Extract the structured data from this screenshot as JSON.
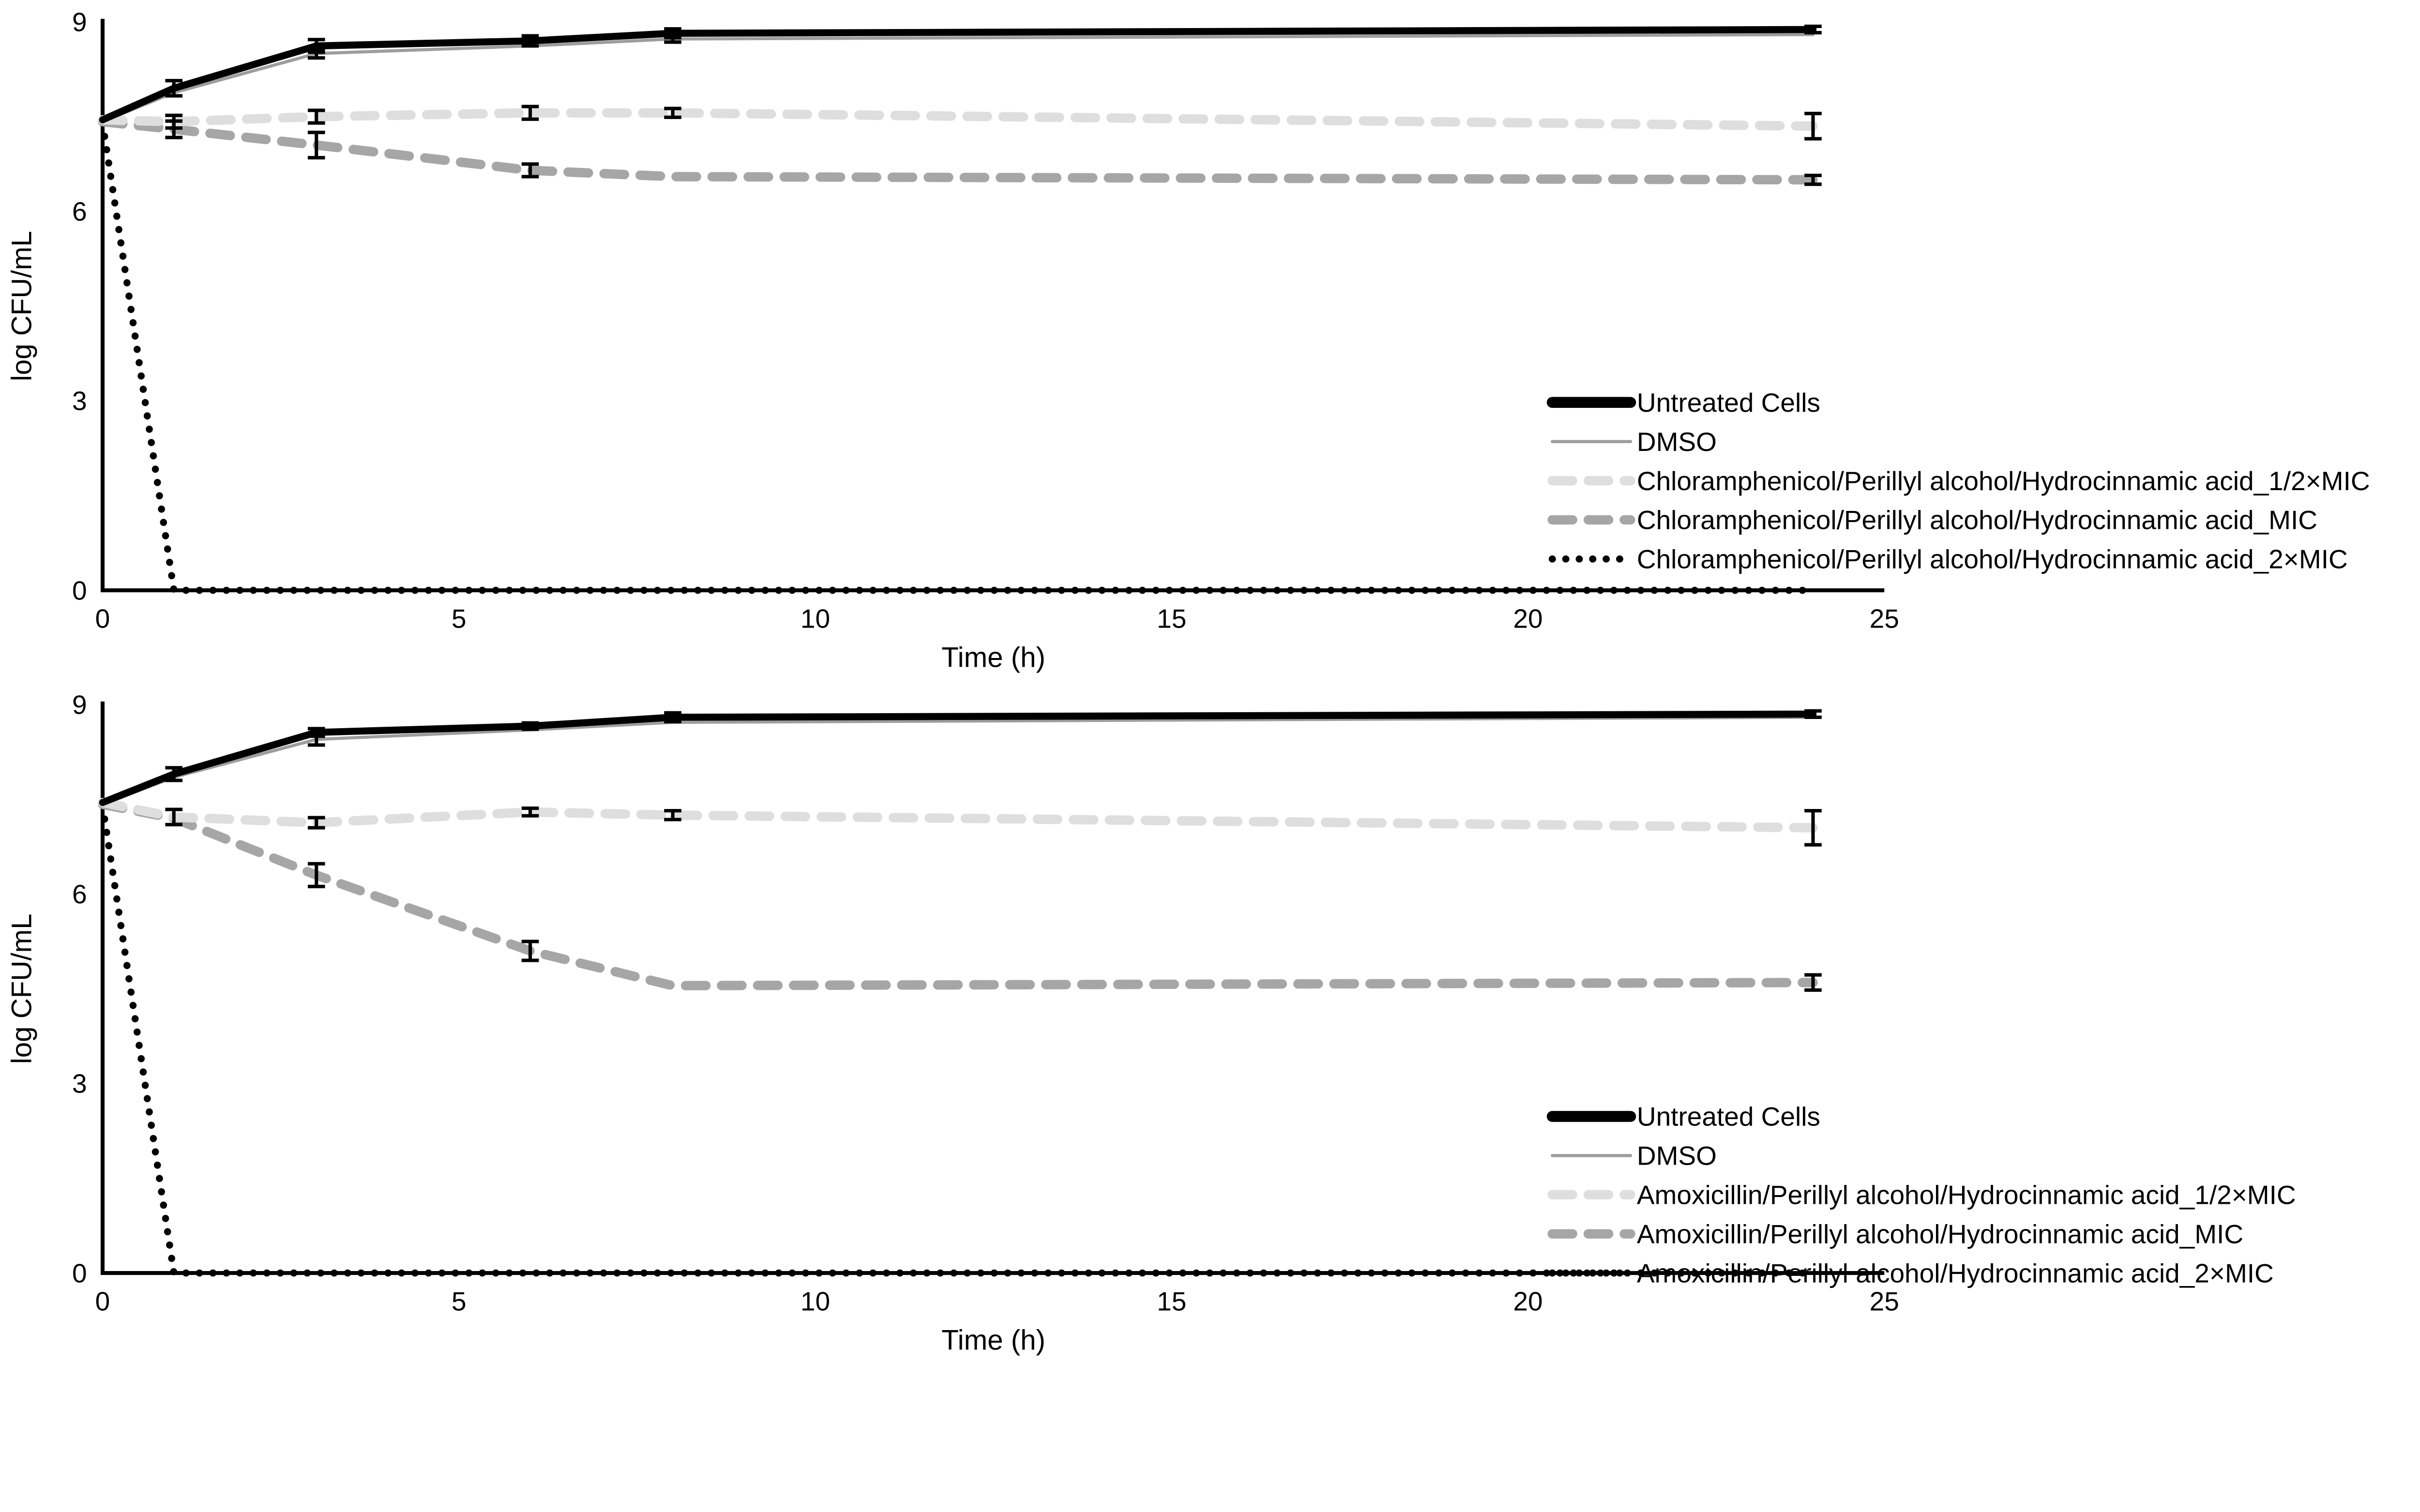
{
  "figure": {
    "background_color": "#ffffff",
    "panel_count": 2,
    "axis_color": "#000000",
    "error_bar_color": "#000000"
  },
  "chart_data": [
    {
      "id": "chloramphenicol-combination-panel",
      "type": "line",
      "title": "",
      "xlabel": "Time (h)",
      "ylabel": "log CFU/mL",
      "xlim": [
        0,
        25
      ],
      "ylim": [
        0,
        9
      ],
      "x_ticks": [
        0,
        5,
        10,
        15,
        20,
        25
      ],
      "y_ticks": [
        0,
        3,
        6,
        9
      ],
      "grid": false,
      "legend_position": "bottom-right",
      "x": [
        0,
        1,
        3,
        6,
        8,
        24
      ],
      "series": [
        {
          "name": "Untreated Cells",
          "line_style": "solid",
          "color": "#000000",
          "stroke_width": 4.5,
          "values": [
            7.45,
            7.95,
            8.62,
            8.7,
            8.82,
            8.88
          ],
          "errors": [
            null,
            0.12,
            0.1,
            0.08,
            0.07,
            0.05
          ]
        },
        {
          "name": "DMSO",
          "line_style": "solid",
          "color": "#9d9d9d",
          "stroke_width": 2,
          "values": [
            7.42,
            7.88,
            8.5,
            8.62,
            8.73,
            8.8
          ],
          "errors": [
            null,
            null,
            0.07,
            null,
            0.05,
            null
          ]
        },
        {
          "name": "Chloramphenicol/Perillyl alcohol/Hydrocinnamic acid_1/2×MIC",
          "line_style": "dashed",
          "color": "#dedede",
          "stroke_width": 6,
          "values": [
            7.45,
            7.42,
            7.5,
            7.56,
            7.56,
            7.35
          ],
          "errors": [
            null,
            0.1,
            0.1,
            0.1,
            0.07,
            0.2
          ]
        },
        {
          "name": "Chloramphenicol/Perillyl alcohol/Hydrocinnamic acid_MIC",
          "line_style": "dashed",
          "color": "#a6a6a6",
          "stroke_width": 6,
          "values": [
            7.42,
            7.3,
            7.05,
            6.65,
            6.55,
            6.5
          ],
          "errors": [
            null,
            0.13,
            0.2,
            0.1,
            null,
            0.07
          ]
        },
        {
          "name": "Chloramphenicol/Perillyl alcohol/Hydrocinnamic acid_2×MIC",
          "line_style": "dotted",
          "color": "#000000",
          "stroke_width": 4.5,
          "values": [
            7.4,
            0,
            0,
            0,
            0,
            0
          ],
          "errors": [
            null,
            null,
            null,
            null,
            null,
            null
          ]
        }
      ]
    },
    {
      "id": "amoxicillin-combination-panel",
      "type": "line",
      "title": "",
      "xlabel": "Time (h)",
      "ylabel": "log CFU/mL",
      "xlim": [
        0,
        25
      ],
      "ylim": [
        0,
        9
      ],
      "x_ticks": [
        0,
        5,
        10,
        15,
        20,
        25
      ],
      "y_ticks": [
        0,
        3,
        6,
        9
      ],
      "grid": false,
      "legend_position": "bottom-right",
      "x": [
        0,
        1,
        3,
        6,
        8,
        24
      ],
      "series": [
        {
          "name": "Untreated Cells",
          "line_style": "solid",
          "color": "#000000",
          "stroke_width": 4.5,
          "values": [
            7.45,
            7.9,
            8.56,
            8.66,
            8.8,
            8.85
          ],
          "errors": [
            null,
            0.1,
            0.06,
            0.05,
            0.07,
            0.05
          ]
        },
        {
          "name": "DMSO",
          "line_style": "solid",
          "color": "#9d9d9d",
          "stroke_width": 2,
          "values": [
            7.42,
            7.85,
            8.45,
            8.6,
            8.72,
            8.8
          ],
          "errors": [
            null,
            null,
            0.09,
            null,
            null,
            null
          ]
        },
        {
          "name": "Amoxicillin/Perillyl alcohol/Hydrocinnamic acid_1/2×MIC",
          "line_style": "dashed",
          "color": "#dedede",
          "stroke_width": 6,
          "values": [
            7.45,
            7.22,
            7.13,
            7.3,
            7.25,
            7.05
          ],
          "errors": [
            null,
            0.12,
            0.08,
            0.06,
            0.07,
            0.27
          ]
        },
        {
          "name": "Amoxicillin/Perillyl alcohol/Hydrocinnamic acid_MIC",
          "line_style": "dashed",
          "color": "#a6a6a6",
          "stroke_width": 6,
          "values": [
            7.42,
            7.2,
            6.3,
            5.1,
            4.55,
            4.6
          ],
          "errors": [
            null,
            null,
            0.18,
            0.15,
            null,
            0.12
          ]
        },
        {
          "name": "Amoxicillin/Perillyl alcohol/Hydrocinnamic acid_2×MIC",
          "line_style": "dotted",
          "color": "#000000",
          "stroke_width": 4.5,
          "values": [
            7.4,
            0,
            0,
            0,
            0,
            0
          ],
          "errors": [
            null,
            null,
            null,
            null,
            null,
            null
          ]
        }
      ]
    }
  ]
}
